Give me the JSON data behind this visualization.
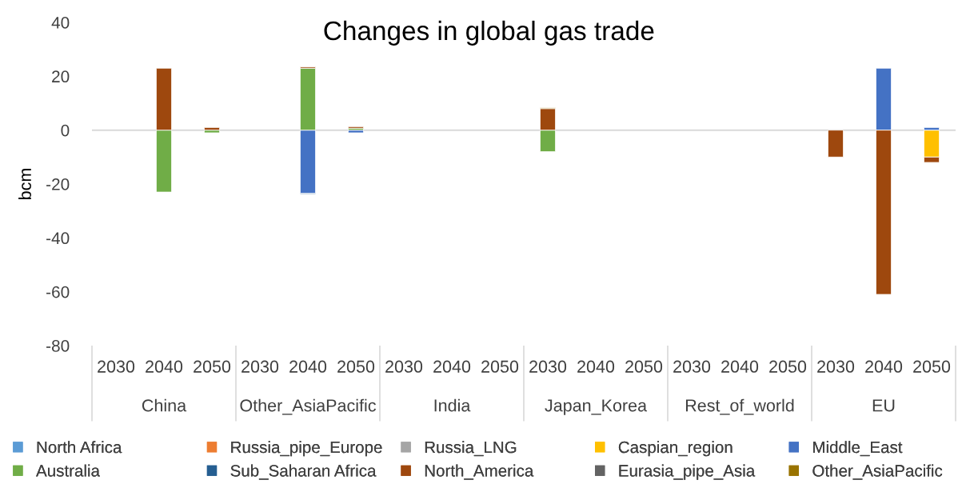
{
  "chart_data": {
    "type": "bar",
    "title": "Changes in global gas trade",
    "ylabel": "bcm",
    "stacked": true,
    "categories": [
      "2030",
      "2040",
      "2050",
      "2030",
      "2040",
      "2050",
      "2030",
      "2040",
      "2050",
      "2030",
      "2040",
      "2050",
      "2030",
      "2040",
      "2050",
      "2030",
      "2040",
      "2050"
    ],
    "annotations": [
      "China",
      "Other_AsiaPacific",
      "India",
      "Japan_Korea",
      "Rest_of_world",
      "EU"
    ],
    "series": [
      {
        "name": "North Africa",
        "color": "#5b9bd5",
        "values": [
          null,
          null,
          null,
          null,
          null,
          null,
          null,
          null,
          null,
          null,
          null,
          null,
          null,
          null,
          null,
          null,
          null,
          null
        ]
      },
      {
        "name": "Russia_pipe_Europe",
        "color": "#ed7d31",
        "values": [
          null,
          null,
          null,
          null,
          null,
          null,
          null,
          null,
          null,
          null,
          null,
          null,
          null,
          null,
          null,
          null,
          null,
          null
        ]
      },
      {
        "name": "Russia_LNG",
        "color": "#a5a5a5",
        "values": [
          null,
          null,
          null,
          null,
          null,
          null,
          null,
          null,
          null,
          null,
          null,
          null,
          null,
          null,
          null,
          null,
          null,
          null
        ]
      },
      {
        "name": "Caspian_region",
        "color": "#ffc000",
        "values": [
          null,
          null,
          null,
          null,
          null,
          null,
          null,
          null,
          null,
          null,
          null,
          null,
          null,
          null,
          null,
          null,
          null,
          -10
        ]
      },
      {
        "name": "Middle_East",
        "color": "#4472c4",
        "values": [
          null,
          null,
          null,
          null,
          -23.5,
          -1,
          null,
          null,
          null,
          null,
          null,
          null,
          null,
          null,
          null,
          null,
          23,
          1
        ]
      },
      {
        "name": "Australia",
        "color": "#70ad47",
        "values": [
          null,
          -23,
          -1,
          null,
          23,
          0.7,
          null,
          null,
          null,
          -8,
          null,
          null,
          null,
          null,
          null,
          null,
          null,
          null
        ]
      },
      {
        "name": "Sub_Saharan Africa",
        "color": "#255e91",
        "values": [
          null,
          null,
          null,
          null,
          -0.3,
          null,
          null,
          null,
          null,
          null,
          null,
          null,
          null,
          null,
          null,
          null,
          null,
          null
        ]
      },
      {
        "name": "North_America",
        "color": "#9e480e",
        "values": [
          null,
          23,
          1,
          null,
          0.5,
          0.6,
          null,
          null,
          null,
          8,
          null,
          null,
          null,
          null,
          null,
          -10,
          -61,
          -2
        ]
      },
      {
        "name": "Eurasia_pipe_Asia",
        "color": "#636363",
        "values": [
          null,
          null,
          null,
          null,
          null,
          null,
          null,
          null,
          null,
          null,
          null,
          null,
          null,
          null,
          null,
          null,
          null,
          null
        ]
      },
      {
        "name": "Other_AsiaPacific",
        "color": "#997300",
        "values": [
          null,
          null,
          null,
          null,
          null,
          null,
          null,
          null,
          null,
          0.3,
          null,
          null,
          null,
          null,
          null,
          null,
          null,
          null
        ]
      }
    ],
    "ylim": [
      -80,
      40
    ],
    "yticks": [
      -80,
      -60,
      -40,
      -20,
      0,
      20,
      40
    ],
    "grid": false,
    "legend": "bottom",
    "ref_lines": [
      {
        "axis": "y",
        "value": 0,
        "color": "#d9d9d9"
      }
    ]
  }
}
